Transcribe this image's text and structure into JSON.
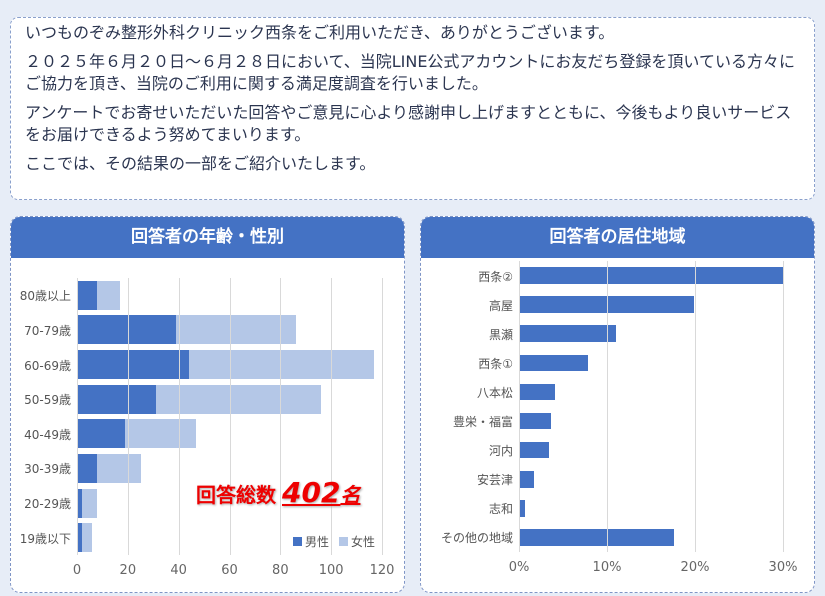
{
  "intro": {
    "p1": "いつものぞみ整形外科クリニック西条をご利用いただき、ありがとうございます。",
    "p2": "２０２５年６月２０日～６月２８日において、当院LINE公式アカウントにお友だち登録を頂いている方々にご協力を頂き、当院のご利用に関する満足度調査を行いました。",
    "p3": "アンケートでお寄せいただいた回答やご意見に心より感謝申し上げますとともに、今後もより良いサービスをお届けできるよう努めてまいります。",
    "p4": "ここでは、その結果の一部をご紹介いたします。"
  },
  "total": {
    "label": "回答総数",
    "value": "402",
    "unit": "名"
  },
  "colors": {
    "male": "#4472c4",
    "female": "#b4c7e7",
    "header": "#4472c4"
  },
  "chart_data": [
    {
      "type": "bar",
      "title": "回答者の年齢・性別",
      "stacked": true,
      "orientation": "horizontal",
      "categories": [
        "80歳以上",
        "70-79歳",
        "60-69歳",
        "50-59歳",
        "40-49歳",
        "30-39歳",
        "20-29歳",
        "19歳以下"
      ],
      "series": [
        {
          "name": "男性",
          "values": [
            8,
            39,
            44,
            31,
            19,
            8,
            2,
            2
          ]
        },
        {
          "name": "女性",
          "values": [
            9,
            47,
            73,
            65,
            28,
            17,
            6,
            4
          ]
        }
      ],
      "xlim": [
        0,
        120
      ],
      "xticks": [
        "0",
        "20",
        "40",
        "60",
        "80",
        "100",
        "120"
      ],
      "legend": "bottom-right",
      "grid": true
    },
    {
      "type": "bar",
      "title": "回答者の居住地域",
      "orientation": "horizontal",
      "categories": [
        "西条②",
        "高屋",
        "黒瀬",
        "西条①",
        "八本松",
        "豊栄・福富",
        "河内",
        "安芸津",
        "志和",
        "その他の地域"
      ],
      "values": [
        30.0,
        19.9,
        11.0,
        7.8,
        4.1,
        3.6,
        3.4,
        1.7,
        0.7,
        17.6
      ],
      "xlim": [
        0,
        30
      ],
      "xticks": [
        "0%",
        "10%",
        "20%",
        "30%"
      ],
      "grid": true
    }
  ]
}
